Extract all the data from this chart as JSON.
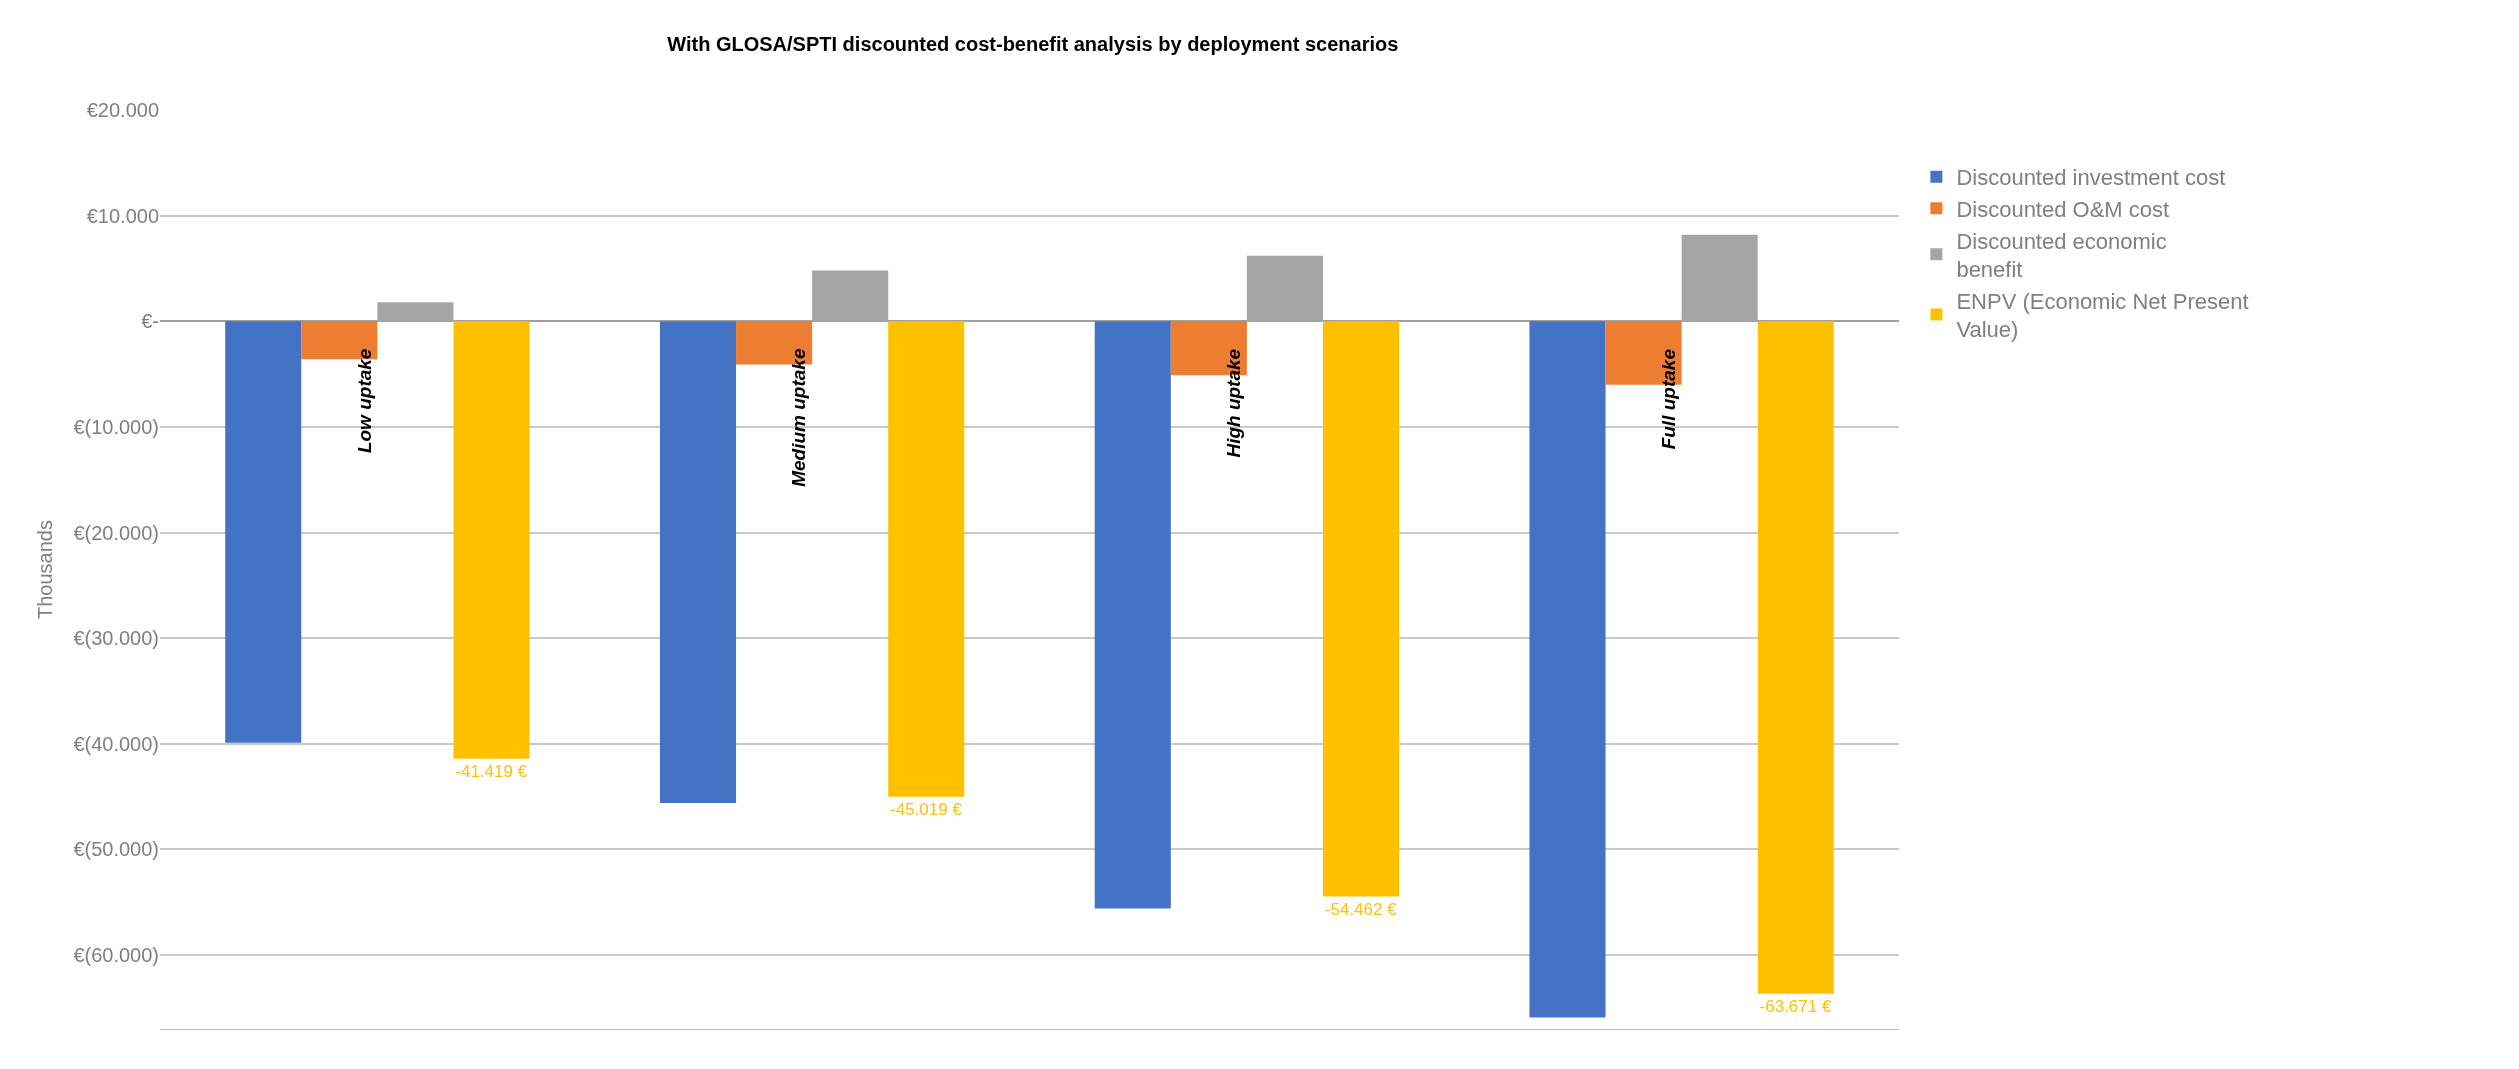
{
  "chart_data": {
    "type": "bar",
    "title": "With GLOSA/SPTI discounted cost-benefit analysis by deployment scenarios",
    "ylabel": "Thousands",
    "categories": [
      "Low uptake",
      "Medium uptake",
      "High uptake",
      "Full uptake"
    ],
    "series": [
      {
        "name": "Discounted investment cost",
        "color": "#4472c4",
        "values": [
          -39900,
          -45600,
          -55600,
          -65900
        ]
      },
      {
        "name": "Discounted O&M cost",
        "color": "#ed7d31",
        "values": [
          -3600,
          -4100,
          -5100,
          -6000
        ]
      },
      {
        "name": "Discounted economic benefit",
        "color": "#a5a5a5",
        "values": [
          1800,
          4800,
          6200,
          8200
        ]
      },
      {
        "name": "ENPV (Economic Net Present Value)",
        "color": "#ffc000",
        "values": [
          -41419,
          -45019,
          -54462,
          -63671
        ],
        "value_labels": [
          "-41.419 €",
          "-45.019 €",
          "-54.462 €",
          "-63.671 €"
        ]
      }
    ],
    "ylim": [
      -67000,
      20000
    ],
    "yticks": [
      {
        "value": 20000,
        "label": "€20.000"
      },
      {
        "value": 10000,
        "label": "€10.000"
      },
      {
        "value": 0,
        "label": "€-"
      },
      {
        "value": -10000,
        "label": "€(10.000)"
      },
      {
        "value": -20000,
        "label": "€(20.000)"
      },
      {
        "value": -30000,
        "label": "€(30.000)"
      },
      {
        "value": -40000,
        "label": "€(40.000)"
      },
      {
        "value": -50000,
        "label": "€(50.000)"
      },
      {
        "value": -60000,
        "label": "€(60.000)"
      }
    ],
    "grid": "y",
    "legend": "right"
  }
}
